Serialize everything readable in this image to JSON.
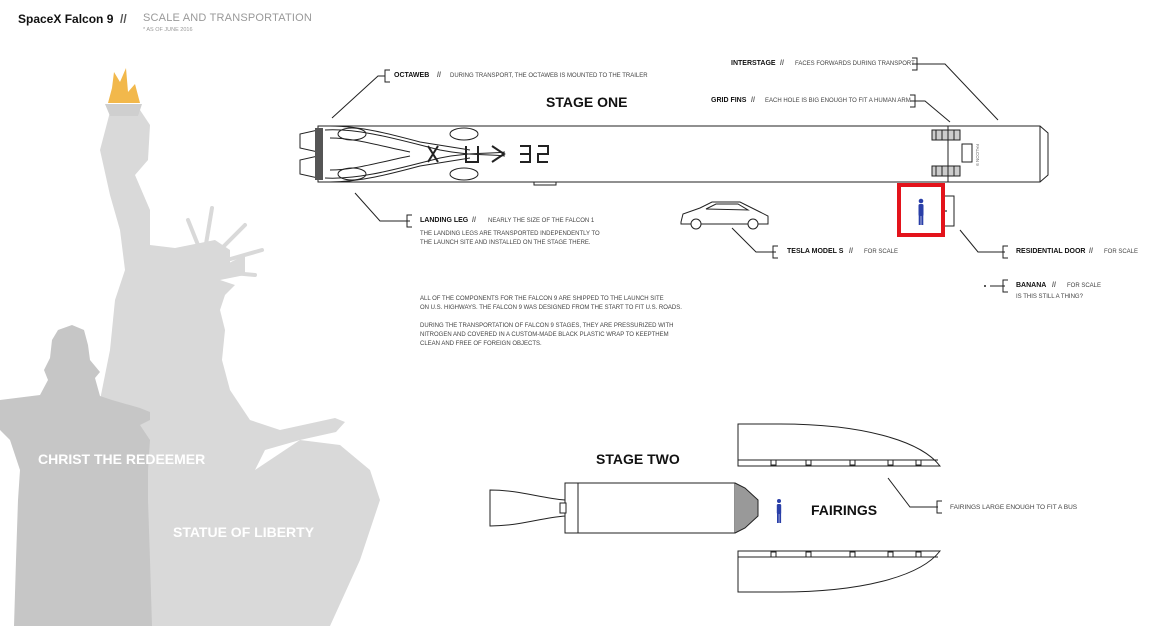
{
  "header": {
    "title": "SpaceX Falcon 9",
    "separator": "//",
    "subtitle": "SCALE AND TRANSPORTATION",
    "date_note": "* AS OF JUNE 2016"
  },
  "headings": {
    "stage_one": "STAGE ONE",
    "stage_two": "STAGE TWO",
    "fairings": "FAIRINGS"
  },
  "callouts": {
    "octaweb": {
      "label": "OCTAWEB",
      "note": "DURING TRANSPORT, THE OCTAWEB IS MOUNTED TO THE TRAILER"
    },
    "interstage": {
      "label": "INTERSTAGE",
      "note": "FACES FORWARDS DURING TRANSPORT"
    },
    "grid_fins": {
      "label": "GRID FINS",
      "note": "EACH HOLE IS BIG ENOUGH TO FIT A HUMAN ARM"
    },
    "landing_leg": {
      "label": "LANDING LEG",
      "note": "NEARLY THE SIZE OF THE FALCON 1",
      "detail_1": "THE LANDING LEGS ARE TRANSPORTED INDEPENDENTLY TO",
      "detail_2": "THE LAUNCH SITE AND INSTALLED ON THE STAGE THERE."
    },
    "tesla": {
      "label": "TESLA MODEL S",
      "note": "FOR SCALE"
    },
    "door": {
      "label": "RESIDENTIAL DOOR",
      "note": "FOR SCALE"
    },
    "banana": {
      "label": "BANANA",
      "note": "FOR SCALE",
      "detail": "IS THIS STILL A THING?"
    },
    "fairings": {
      "label": "FAIRINGS LARGE ENOUGH TO FIT A BUS"
    }
  },
  "paragraphs": {
    "p1_line1": "ALL OF THE  COMPONENTS FOR THE FALCON 9 ARE SHIPPED TO THE LAUNCH SITE",
    "p1_line2": "ON U.S. HIGHWAYS. THE FALCON 9 WAS DESIGNED FROM THE START TO FIT U.S. ROADS.",
    "p2_line1": "DURING THE TRANSPORTATION OF FALCON 9 STAGES, THEY ARE PRESSURIZED WITH",
    "p2_line2": "NITROGEN AND COVERED IN A CUSTOM-MADE BLACK PLASTIC WRAP TO KEEPTHEM",
    "p2_line3": "CLEAN AND FREE OF FOREIGN OBJECTS."
  },
  "rocket": {
    "logo_text": "SPACEX",
    "side_mark": "FALCON 9"
  },
  "statues": {
    "christ": "CHRIST THE REDEEMER",
    "liberty": "STATUE OF LIBERTY"
  },
  "colors": {
    "highlight": "#e3131b",
    "person": "#2a3fa8",
    "torch": "#f2b84b",
    "statue_light": "#d8d8d8",
    "statue_dark": "#c4c4c4"
  }
}
